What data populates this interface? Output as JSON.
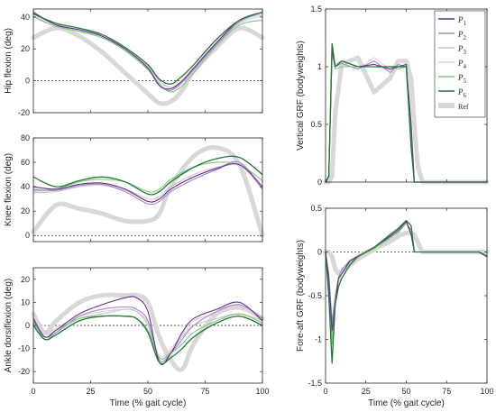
{
  "chart_data": [
    {
      "type": "line",
      "ylabel": "Hip flexion (deg)",
      "xlabel": "",
      "xlim": [
        0,
        100
      ],
      "ylim": [
        -20,
        45
      ],
      "yticks": [
        -20,
        0,
        20,
        40
      ],
      "xticks": [
        0,
        25,
        50,
        75,
        100
      ],
      "xticklabels_shown": false,
      "zero_line": true,
      "x": [
        0,
        10,
        20,
        30,
        40,
        50,
        55,
        60,
        65,
        70,
        80,
        90,
        100
      ],
      "series": [
        {
          "name": "P1",
          "values": [
            43,
            35,
            32,
            28,
            20,
            8,
            -3,
            -5,
            0,
            8,
            24,
            38,
            43
          ]
        },
        {
          "name": "P2",
          "values": [
            42,
            35,
            32,
            28,
            19,
            7,
            -3,
            -6,
            -1,
            7,
            23,
            37,
            43
          ]
        },
        {
          "name": "P3",
          "values": [
            40,
            34,
            31,
            27,
            20,
            9,
            0,
            -4,
            0,
            8,
            24,
            37,
            42
          ]
        },
        {
          "name": "P4",
          "values": [
            41,
            34,
            31,
            27,
            19,
            8,
            -1,
            -4,
            0,
            8,
            24,
            36,
            41
          ]
        },
        {
          "name": "P5",
          "values": [
            40,
            34,
            31,
            27,
            19,
            7,
            -2,
            -7,
            -3,
            5,
            22,
            35,
            38
          ]
        },
        {
          "name": "P6",
          "values": [
            42,
            36,
            33,
            29,
            21,
            10,
            1,
            -2,
            3,
            10,
            26,
            38,
            43
          ]
        },
        {
          "name": "Ref",
          "values": [
            27,
            33,
            28,
            18,
            5,
            -8,
            -14,
            -13,
            -6,
            6,
            21,
            33,
            27
          ]
        }
      ]
    },
    {
      "type": "line",
      "ylabel": "Knee flexion (deg)",
      "xlabel": "",
      "xlim": [
        0,
        100
      ],
      "ylim": [
        -5,
        80
      ],
      "yticks": [
        0,
        20,
        40,
        60,
        80
      ],
      "xticks": [
        0,
        25,
        50,
        75,
        100
      ],
      "xticklabels_shown": false,
      "zero_line": true,
      "x": [
        0,
        10,
        20,
        30,
        40,
        50,
        55,
        60,
        70,
        80,
        90,
        100
      ],
      "series": [
        {
          "name": "P1",
          "values": [
            40,
            38,
            42,
            43,
            38,
            28,
            30,
            38,
            48,
            55,
            58,
            40
          ]
        },
        {
          "name": "P2",
          "values": [
            38,
            37,
            41,
            42,
            36,
            26,
            28,
            36,
            46,
            54,
            60,
            38
          ]
        },
        {
          "name": "P3",
          "values": [
            35,
            36,
            40,
            42,
            38,
            30,
            32,
            40,
            50,
            56,
            58,
            38
          ]
        },
        {
          "name": "P4",
          "values": [
            36,
            37,
            40,
            41,
            37,
            28,
            30,
            38,
            48,
            55,
            60,
            40
          ]
        },
        {
          "name": "P5",
          "values": [
            37,
            38,
            44,
            46,
            44,
            36,
            38,
            46,
            56,
            60,
            58,
            45
          ]
        },
        {
          "name": "P6",
          "values": [
            48,
            40,
            45,
            48,
            44,
            34,
            36,
            44,
            56,
            63,
            64,
            50
          ]
        },
        {
          "name": "Ref",
          "values": [
            3,
            25,
            22,
            18,
            12,
            12,
            18,
            40,
            65,
            72,
            58,
            0
          ]
        }
      ]
    },
    {
      "type": "line",
      "ylabel": "Ankle dorsiflexion (deg)",
      "xlabel": "Time (% gait cycle)",
      "xlim": [
        0,
        100
      ],
      "ylim": [
        -25,
        25
      ],
      "yticks": [
        -20,
        -10,
        0,
        10,
        20
      ],
      "xticks": [
        0,
        25,
        50,
        75,
        100
      ],
      "zero_line": true,
      "x": [
        0,
        5,
        10,
        20,
        30,
        40,
        45,
        50,
        55,
        60,
        65,
        70,
        80,
        90,
        100
      ],
      "series": [
        {
          "name": "P1",
          "values": [
            3,
            -5,
            -2,
            5,
            9,
            12,
            12,
            6,
            -16,
            -12,
            -3,
            3,
            7,
            10,
            2
          ]
        },
        {
          "name": "P2",
          "values": [
            2,
            -6,
            -3,
            4,
            7,
            8,
            7,
            2,
            -15,
            -12,
            -6,
            0,
            6,
            9,
            3
          ]
        },
        {
          "name": "P3",
          "values": [
            1,
            -5,
            -3,
            3,
            5,
            7,
            6,
            0,
            -14,
            -11,
            -5,
            0,
            3,
            5,
            2
          ]
        },
        {
          "name": "P4",
          "values": [
            2,
            -4,
            -1,
            4,
            6,
            7,
            6,
            1,
            -13,
            -10,
            -4,
            2,
            5,
            7,
            3
          ]
        },
        {
          "name": "P5",
          "values": [
            1,
            -5,
            -2,
            3,
            4,
            4,
            3,
            -2,
            -14,
            -12,
            -8,
            -3,
            2,
            5,
            1
          ]
        },
        {
          "name": "P6",
          "values": [
            0,
            -6,
            -4,
            2,
            4,
            4,
            3,
            -3,
            -16,
            -14,
            -10,
            -5,
            1,
            4,
            0
          ]
        },
        {
          "name": "Ref",
          "values": [
            5,
            -3,
            2,
            10,
            13,
            13,
            13,
            10,
            -5,
            -15,
            -19,
            -8,
            5,
            8,
            3
          ]
        }
      ]
    },
    {
      "type": "line",
      "ylabel": "Vertical GRF (bodyweights)",
      "xlabel": "",
      "xlim": [
        0,
        100
      ],
      "ylim": [
        0,
        1.5
      ],
      "yticks": [
        0,
        0.5,
        1,
        1.5
      ],
      "xticks": [
        0,
        25,
        50,
        75,
        100
      ],
      "xticklabels_shown": false,
      "x": [
        0,
        2,
        4,
        6,
        10,
        20,
        30,
        40,
        45,
        50,
        53,
        55,
        57,
        60,
        100
      ],
      "series": [
        {
          "name": "P1",
          "values": [
            0,
            0.05,
            1.15,
            1.0,
            1.05,
            1.0,
            1.02,
            0.98,
            1.0,
            1.02,
            0.5,
            0,
            0,
            0,
            0
          ]
        },
        {
          "name": "P2",
          "values": [
            0,
            0.05,
            1.12,
            1.0,
            1.03,
            0.98,
            1.05,
            0.95,
            1.02,
            1.0,
            0.4,
            0,
            0,
            0,
            0
          ]
        },
        {
          "name": "P3",
          "values": [
            0,
            0.04,
            1.1,
            1.02,
            1.05,
            1.0,
            1.0,
            0.98,
            1.0,
            1.0,
            0.45,
            0,
            0,
            0,
            0
          ]
        },
        {
          "name": "P4",
          "values": [
            0,
            0.05,
            1.1,
            1.0,
            1.02,
            0.98,
            1.08,
            0.97,
            1.0,
            1.0,
            0.5,
            0,
            0,
            0,
            0
          ]
        },
        {
          "name": "P5",
          "values": [
            0,
            0.06,
            1.15,
            0.98,
            1.0,
            1.0,
            1.0,
            1.0,
            0.98,
            1.0,
            0.4,
            0,
            0,
            0,
            0
          ]
        },
        {
          "name": "P6",
          "values": [
            0,
            0.05,
            1.2,
            1.0,
            1.05,
            1.0,
            1.0,
            1.0,
            1.0,
            1.0,
            0.3,
            0,
            0,
            0,
            0
          ]
        },
        {
          "name": "Ref",
          "values": [
            0,
            0.0,
            0.05,
            0.6,
            1.02,
            1.08,
            0.78,
            0.9,
            1.05,
            1.05,
            0.9,
            0.5,
            0.15,
            0.0,
            0.0
          ]
        }
      ]
    },
    {
      "type": "line",
      "ylabel": "Fore-aft GRF (bodyweights)",
      "xlabel": "Time (% gait cycle)",
      "xlim": [
        0,
        100
      ],
      "ylim": [
        -1.5,
        0.5
      ],
      "yticks": [
        -1.5,
        -1,
        -0.5,
        0,
        0.5
      ],
      "xticks": [
        0,
        25,
        50,
        75,
        100
      ],
      "zero_line": true,
      "x": [
        0,
        2,
        4,
        6,
        8,
        10,
        15,
        20,
        30,
        40,
        45,
        50,
        53,
        55,
        60,
        95,
        100
      ],
      "series": [
        {
          "name": "P1",
          "values": [
            0,
            -0.3,
            -0.9,
            -0.6,
            -0.3,
            -0.25,
            -0.1,
            -0.05,
            0.05,
            0.18,
            0.25,
            0.35,
            0.2,
            0,
            0,
            0,
            -0.05
          ]
        },
        {
          "name": "P2",
          "values": [
            0,
            -0.25,
            -0.8,
            -0.5,
            -0.3,
            -0.2,
            -0.1,
            -0.05,
            0.05,
            0.17,
            0.22,
            0.33,
            0.25,
            0,
            0,
            0,
            -0.04
          ]
        },
        {
          "name": "P3",
          "values": [
            0,
            -0.3,
            -1.0,
            -0.6,
            -0.35,
            -0.25,
            -0.12,
            -0.05,
            0.05,
            0.18,
            0.24,
            0.34,
            0.2,
            0,
            0,
            0,
            -0.05
          ]
        },
        {
          "name": "P4",
          "values": [
            0,
            -0.3,
            -0.85,
            -0.5,
            -0.3,
            -0.2,
            -0.1,
            -0.03,
            0.06,
            0.18,
            0.25,
            0.33,
            0.22,
            0,
            0,
            0,
            -0.04
          ]
        },
        {
          "name": "P5",
          "values": [
            0,
            -0.4,
            -1.05,
            -0.55,
            -0.3,
            -0.25,
            -0.12,
            -0.06,
            0.04,
            0.16,
            0.23,
            0.34,
            0.2,
            0,
            0,
            0,
            -0.06
          ]
        },
        {
          "name": "P6",
          "values": [
            0,
            -0.5,
            -1.27,
            -0.6,
            -0.4,
            -0.3,
            -0.15,
            -0.05,
            0.05,
            0.2,
            0.27,
            0.36,
            0.3,
            0,
            0,
            0,
            -0.05
          ]
        },
        {
          "name": "Ref",
          "values": [
            0,
            0,
            -0.05,
            -0.2,
            -0.25,
            -0.22,
            -0.15,
            -0.08,
            0.03,
            0.12,
            0.18,
            0.22,
            0.22,
            0.2,
            0,
            0,
            0
          ]
        }
      ]
    }
  ],
  "legend": {
    "placement": "top-right of vertical GRF panel",
    "entries": [
      {
        "sym": "P",
        "sub": "1",
        "color": "#6b2c91"
      },
      {
        "sym": "P",
        "sub": "2",
        "color": "#9e8bc4"
      },
      {
        "sym": "P",
        "sub": "3",
        "color": "#c8c8c8"
      },
      {
        "sym": "P",
        "sub": "4",
        "color": "#e8c8e8"
      },
      {
        "sym": "P",
        "sub": "5",
        "color": "#7dc87d"
      },
      {
        "sym": "P",
        "sub": "6",
        "color": "#1e7a32"
      },
      {
        "sym": "Ref",
        "sub": "",
        "color": "#d8d8d8"
      }
    ]
  },
  "colors": {
    "P1": "#6b2c91",
    "P2": "#9e8bc4",
    "P3": "#c8c8c8",
    "P4": "#e8c8e8",
    "P5": "#7dc87d",
    "P6": "#1e7a32",
    "Ref": "#d8d8d8",
    "axis": "#262626"
  }
}
